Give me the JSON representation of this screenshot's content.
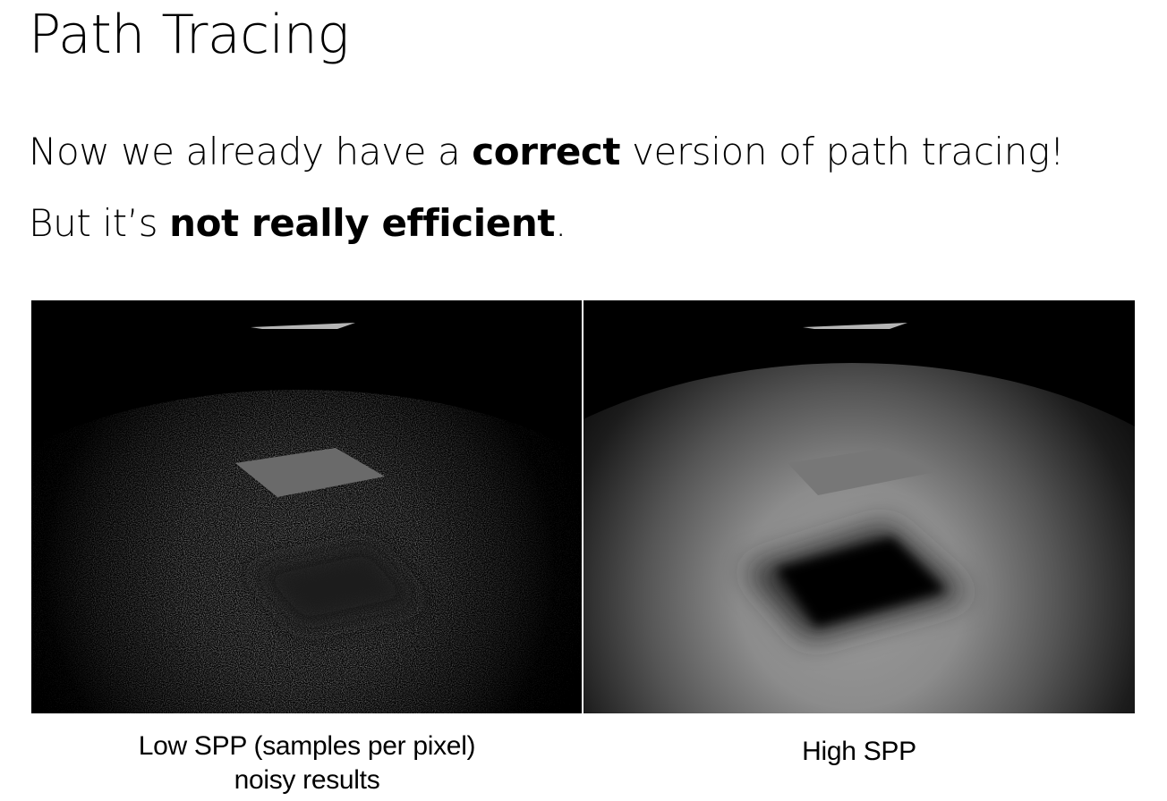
{
  "slide": {
    "title": "Path Tracing",
    "line1": {
      "before": "Now we already have a ",
      "bold": "correct",
      "after": " version of path tracing!"
    },
    "line2": {
      "before": "But it’s ",
      "bold": "not really efficient",
      "after": "."
    }
  },
  "figures": {
    "left": {
      "caption_line1": "Low SPP (samples per pixel)",
      "caption_line2": "noisy results"
    },
    "right": {
      "caption_line1": "High SPP"
    }
  },
  "colors": {
    "background": "#ffffff",
    "text": "#000000",
    "render_background": "#000000"
  }
}
